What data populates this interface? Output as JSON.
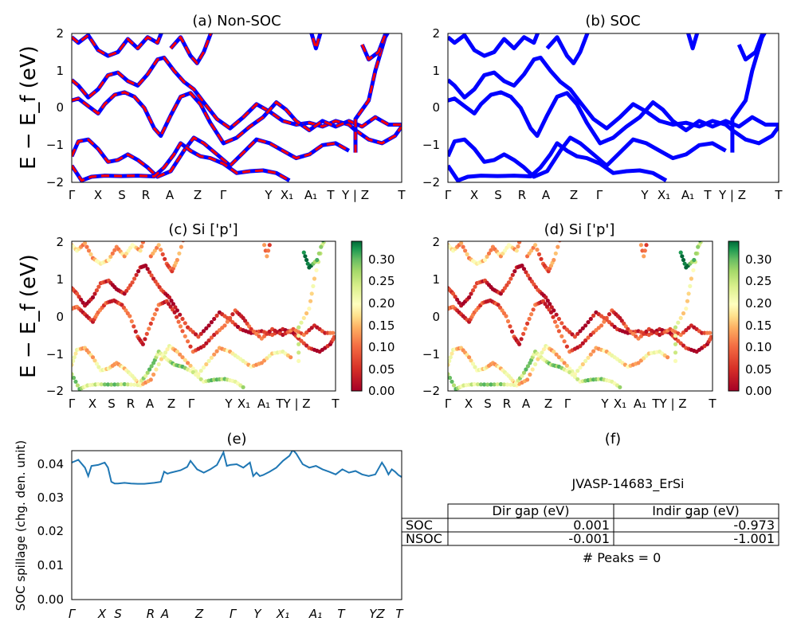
{
  "chart_data": [
    {
      "id": "a",
      "type": "line",
      "title": "(a) Non-SOC",
      "ylabel": "E − E_f (eV)",
      "ylim": [
        -2,
        2
      ],
      "yticks": [
        "2",
        "1",
        "0",
        "−1",
        "−2"
      ],
      "xticks": [
        "Γ",
        "X",
        "S",
        "R",
        "A",
        "Z",
        "Γ",
        "Y",
        "X₁",
        "A₁",
        "T",
        "Y | Z",
        "T"
      ],
      "series_colors": [
        "#0000ff",
        "#ff0000"
      ],
      "grid": false
    },
    {
      "id": "b",
      "type": "line",
      "title": "(b) SOC",
      "ylim": [
        -2,
        2
      ],
      "yticks": [
        "2",
        "1",
        "0",
        "−1",
        "−2"
      ],
      "xticks": [
        "Γ",
        "X",
        "S",
        "R",
        "A",
        "Z",
        "Γ",
        "Y",
        "X₁",
        "A₁",
        "T",
        "Y | Z",
        "T"
      ],
      "series_colors": [
        "#0000ff"
      ],
      "grid": false
    },
    {
      "id": "c",
      "type": "scatter",
      "title": "(c)  Si ['p']",
      "ylabel": "E − E_f (eV)",
      "ylim": [
        -2,
        2
      ],
      "yticks": [
        "2",
        "1",
        "0",
        "−1",
        "−2"
      ],
      "xticks": [
        "Γ",
        "X",
        "S",
        "R",
        "A",
        "Z",
        "Γ",
        "Y",
        "X₁",
        "A₁",
        "TY | Z",
        "T"
      ],
      "colorbar": {
        "ticks": [
          "0.30",
          "0.25",
          "0.20",
          "0.15",
          "0.10",
          "0.05",
          "0.00"
        ],
        "range": [
          0,
          0.33
        ],
        "cmap": "RdYlGn"
      }
    },
    {
      "id": "d",
      "type": "scatter",
      "title": "(d) Si ['p']",
      "ylim": [
        -2,
        2
      ],
      "yticks": [
        "2",
        "1",
        "0",
        "−1",
        "−2"
      ],
      "xticks": [
        "Γ",
        "X",
        "S",
        "R",
        "A",
        "Z",
        "Γ",
        "Y",
        "X₁",
        "A₁",
        "TY | Z",
        "T"
      ],
      "colorbar": {
        "ticks": [
          "0.30",
          "0.25",
          "0.20",
          "0.15",
          "0.10",
          "0.05",
          "0.00"
        ],
        "range": [
          0,
          0.33
        ],
        "cmap": "RdYlGn"
      }
    },
    {
      "id": "e",
      "type": "line",
      "title": "(e)",
      "ylabel": "SOC spillage (chg. den. unit)",
      "ylim": [
        0,
        0.044
      ],
      "yticks": [
        "0.04",
        "0.03",
        "0.02",
        "0.01",
        "0.00"
      ],
      "xticks": [
        "Γ",
        "X",
        "S",
        "R",
        "A",
        "Z",
        "Γ",
        "Y",
        "X₁",
        "A₁",
        "T",
        "YZ",
        "T"
      ],
      "x": [
        0,
        0.02,
        0.04,
        0.05,
        0.06,
        0.08,
        0.1,
        0.11,
        0.12,
        0.13,
        0.14,
        0.16,
        0.18,
        0.2,
        0.22,
        0.25,
        0.27,
        0.28,
        0.29,
        0.3,
        0.33,
        0.35,
        0.36,
        0.38,
        0.4,
        0.42,
        0.44,
        0.46,
        0.47,
        0.48,
        0.5,
        0.52,
        0.54,
        0.55,
        0.56,
        0.57,
        0.58,
        0.6,
        0.62,
        0.64,
        0.66,
        0.67,
        0.68,
        0.7,
        0.72,
        0.74,
        0.76,
        0.78,
        0.8,
        0.82,
        0.84,
        0.86,
        0.88,
        0.9,
        0.92,
        0.94,
        0.95,
        0.96,
        0.97,
        0.98,
        0.99,
        1.0
      ],
      "values": [
        0.0405,
        0.0413,
        0.039,
        0.0365,
        0.0395,
        0.0398,
        0.0405,
        0.039,
        0.0348,
        0.0343,
        0.0343,
        0.0345,
        0.0343,
        0.0342,
        0.0342,
        0.0345,
        0.0348,
        0.0378,
        0.0372,
        0.0375,
        0.0382,
        0.0392,
        0.041,
        0.0385,
        0.0375,
        0.0385,
        0.0398,
        0.0435,
        0.0395,
        0.0398,
        0.04,
        0.039,
        0.0405,
        0.0365,
        0.0375,
        0.0365,
        0.0368,
        0.0378,
        0.039,
        0.041,
        0.0425,
        0.0442,
        0.0432,
        0.04,
        0.039,
        0.0395,
        0.0385,
        0.0378,
        0.037,
        0.0385,
        0.0375,
        0.038,
        0.037,
        0.0365,
        0.037,
        0.0405,
        0.039,
        0.037,
        0.0385,
        0.0378,
        0.0368,
        0.0362
      ],
      "color": "#1f77b4"
    }
  ],
  "table_panel": {
    "title": "(f)",
    "material": "JVASP-14683_ErSi",
    "columns": [
      "Dir gap (eV)",
      "Indir gap (eV)"
    ],
    "rows": [
      {
        "label": "SOC",
        "dir": "0.001",
        "indir": "-0.973"
      },
      {
        "label": "NSOC",
        "dir": "-0.001",
        "indir": "-1.001"
      }
    ],
    "peaks": "# Peaks = 0"
  }
}
